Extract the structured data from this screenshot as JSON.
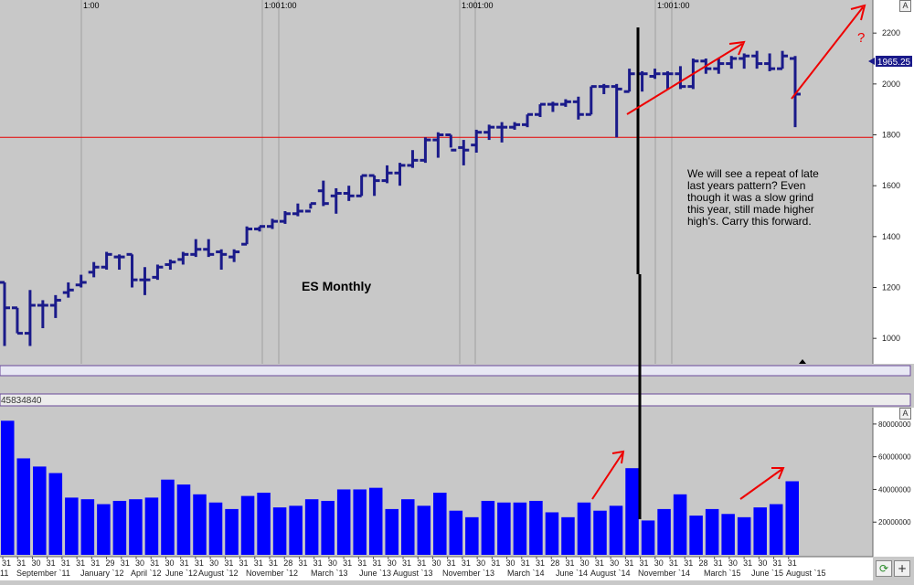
{
  "chart_data": [
    {
      "type": "ohlc",
      "title": "ES Monthly",
      "price_label": "1965.25",
      "support_level": 1790,
      "ylim": [
        900,
        2330
      ],
      "yticks": [
        1000,
        1200,
        1400,
        1600,
        1800,
        2000,
        2200
      ],
      "session_labels": [
        "1:00",
        "1:00",
        "1:00",
        "1:00",
        "1:00",
        "1:00",
        "1:00"
      ],
      "annotation": "We will see a repeat of late last years pattern? Even though it was a slow grind this year, still made higher high's. Carry this forward.",
      "question_mark": "?",
      "bars": [
        {
          "o": 1220,
          "h": 1220,
          "l": 970,
          "c": 1120
        },
        {
          "o": 1120,
          "h": 1120,
          "l": 1020,
          "c": 1020
        },
        {
          "o": 1020,
          "h": 1190,
          "l": 970,
          "c": 1130
        },
        {
          "o": 1130,
          "h": 1150,
          "l": 1040,
          "c": 1130
        },
        {
          "o": 1130,
          "h": 1170,
          "l": 1080,
          "c": 1150
        },
        {
          "o": 1180,
          "h": 1220,
          "l": 1160,
          "c": 1190
        },
        {
          "o": 1210,
          "h": 1250,
          "l": 1200,
          "c": 1220
        },
        {
          "o": 1260,
          "h": 1300,
          "l": 1240,
          "c": 1280
        },
        {
          "o": 1280,
          "h": 1340,
          "l": 1270,
          "c": 1330
        },
        {
          "o": 1320,
          "h": 1330,
          "l": 1270,
          "c": 1320
        },
        {
          "o": 1330,
          "h": 1330,
          "l": 1200,
          "c": 1230
        },
        {
          "o": 1230,
          "h": 1280,
          "l": 1170,
          "c": 1230
        },
        {
          "o": 1240,
          "h": 1290,
          "l": 1230,
          "c": 1280
        },
        {
          "o": 1290,
          "h": 1310,
          "l": 1270,
          "c": 1300
        },
        {
          "o": 1310,
          "h": 1340,
          "l": 1290,
          "c": 1330
        },
        {
          "o": 1330,
          "h": 1390,
          "l": 1320,
          "c": 1350
        },
        {
          "o": 1350,
          "h": 1390,
          "l": 1320,
          "c": 1330
        },
        {
          "o": 1340,
          "h": 1350,
          "l": 1270,
          "c": 1330
        },
        {
          "o": 1320,
          "h": 1350,
          "l": 1300,
          "c": 1340
        },
        {
          "o": 1370,
          "h": 1440,
          "l": 1370,
          "c": 1430
        },
        {
          "o": 1430,
          "h": 1440,
          "l": 1420,
          "c": 1440
        },
        {
          "o": 1440,
          "h": 1470,
          "l": 1430,
          "c": 1460
        },
        {
          "o": 1460,
          "h": 1500,
          "l": 1450,
          "c": 1490
        },
        {
          "o": 1490,
          "h": 1530,
          "l": 1480,
          "c": 1500
        },
        {
          "o": 1500,
          "h": 1530,
          "l": 1510,
          "c": 1530
        },
        {
          "o": 1580,
          "h": 1620,
          "l": 1520,
          "c": 1530
        },
        {
          "o": 1560,
          "h": 1590,
          "l": 1490,
          "c": 1570
        },
        {
          "o": 1570,
          "h": 1600,
          "l": 1540,
          "c": 1560
        },
        {
          "o": 1560,
          "h": 1640,
          "l": 1560,
          "c": 1640
        },
        {
          "o": 1640,
          "h": 1640,
          "l": 1560,
          "c": 1620
        },
        {
          "o": 1620,
          "h": 1680,
          "l": 1610,
          "c": 1650
        },
        {
          "o": 1650,
          "h": 1690,
          "l": 1600,
          "c": 1680
        },
        {
          "o": 1680,
          "h": 1740,
          "l": 1670,
          "c": 1700
        },
        {
          "o": 1700,
          "h": 1790,
          "l": 1690,
          "c": 1780
        },
        {
          "o": 1780,
          "h": 1810,
          "l": 1710,
          "c": 1800
        },
        {
          "o": 1800,
          "h": 1800,
          "l": 1750,
          "c": 1740
        },
        {
          "o": 1750,
          "h": 1780,
          "l": 1680,
          "c": 1740
        },
        {
          "o": 1760,
          "h": 1820,
          "l": 1730,
          "c": 1810
        },
        {
          "o": 1810,
          "h": 1840,
          "l": 1780,
          "c": 1830
        },
        {
          "o": 1830,
          "h": 1850,
          "l": 1770,
          "c": 1830
        },
        {
          "o": 1830,
          "h": 1850,
          "l": 1820,
          "c": 1840
        },
        {
          "o": 1840,
          "h": 1880,
          "l": 1830,
          "c": 1880
        },
        {
          "o": 1880,
          "h": 1920,
          "l": 1870,
          "c": 1920
        },
        {
          "o": 1920,
          "h": 1930,
          "l": 1890,
          "c": 1920
        },
        {
          "o": 1920,
          "h": 1940,
          "l": 1910,
          "c": 1930
        },
        {
          "o": 1930,
          "h": 1950,
          "l": 1860,
          "c": 1880
        },
        {
          "o": 1880,
          "h": 1990,
          "l": 1880,
          "c": 1990
        },
        {
          "o": 1990,
          "h": 2000,
          "l": 1960,
          "c": 1990
        },
        {
          "o": 1990,
          "h": 2000,
          "l": 1790,
          "c": 1980
        },
        {
          "o": 1970,
          "h": 2060,
          "l": 1970,
          "c": 2040
        },
        {
          "o": 2040,
          "h": 2050,
          "l": 1970,
          "c": 2040
        },
        {
          "o": 2030,
          "h": 2060,
          "l": 2020,
          "c": 2040
        },
        {
          "o": 2040,
          "h": 2050,
          "l": 1980,
          "c": 2040
        },
        {
          "o": 2040,
          "h": 2070,
          "l": 1980,
          "c": 1990
        },
        {
          "o": 1990,
          "h": 2100,
          "l": 1980,
          "c": 2090
        },
        {
          "o": 2090,
          "h": 2100,
          "l": 2040,
          "c": 2060
        },
        {
          "o": 2060,
          "h": 2100,
          "l": 2040,
          "c": 2080
        },
        {
          "o": 2080,
          "h": 2110,
          "l": 2060,
          "c": 2100
        },
        {
          "o": 2100,
          "h": 2120,
          "l": 2060,
          "c": 2110
        },
        {
          "o": 2110,
          "h": 2130,
          "l": 2060,
          "c": 2080
        },
        {
          "o": 2080,
          "h": 2120,
          "l": 2050,
          "c": 2060
        },
        {
          "o": 2060,
          "h": 2130,
          "l": 2060,
          "c": 2110
        },
        {
          "o": 2100,
          "h": 2110,
          "l": 1830,
          "c": 1960
        }
      ]
    },
    {
      "type": "bar",
      "title": "",
      "readout": "45834840",
      "ylim": [
        0,
        90000000
      ],
      "yticks": [
        20000000,
        40000000,
        60000000,
        80000000
      ],
      "values": [
        82000000,
        59000000,
        54000000,
        50000000,
        35000000,
        34000000,
        31000000,
        33000000,
        34000000,
        35000000,
        46000000,
        43000000,
        37000000,
        32000000,
        28000000,
        36000000,
        38000000,
        29000000,
        30000000,
        34000000,
        33000000,
        40000000,
        40000000,
        41000000,
        28000000,
        34000000,
        30000000,
        38000000,
        27000000,
        23000000,
        33000000,
        32000000,
        32000000,
        33000000,
        26000000,
        23000000,
        32000000,
        27000000,
        30000000,
        53000000,
        21000000,
        28000000,
        37000000,
        24000000,
        28000000,
        25000000,
        23000000,
        29000000,
        31000000,
        45000000
      ],
      "xticks_top": [
        "31",
        "31",
        "30",
        "31",
        "31",
        "31",
        "31",
        "29",
        "31",
        "30",
        "31",
        "30",
        "31",
        "31",
        "30",
        "31",
        "31",
        "31",
        "31",
        "28",
        "31",
        "31",
        "30",
        "31",
        "31",
        "31",
        "30",
        "31",
        "31",
        "30",
        "31",
        "31",
        "30",
        "31",
        "30",
        "31",
        "31",
        "28",
        "31",
        "30",
        "31",
        "30",
        "31",
        "31",
        "30",
        "31",
        "31",
        "28",
        "31",
        "30",
        "31",
        "30",
        "31",
        "31"
      ],
      "xticks_bottom": [
        "11",
        "September `11",
        "January `12",
        "April `12",
        "June `12",
        "August `12",
        "November `12",
        "March `13",
        "June `13",
        "August `13",
        "November `13",
        "March `14",
        "June `14",
        "August `14",
        "November `14",
        "March `15",
        "June `15",
        "August `15"
      ]
    }
  ],
  "colors": {
    "background": "#c8c8c8",
    "ohlc": "#1a1a8a",
    "volume": "#0000ff",
    "support": "#e60000",
    "arrow": "#ee0000"
  },
  "icons": {
    "refresh": "refresh-icon",
    "plus": "plus-icon"
  }
}
